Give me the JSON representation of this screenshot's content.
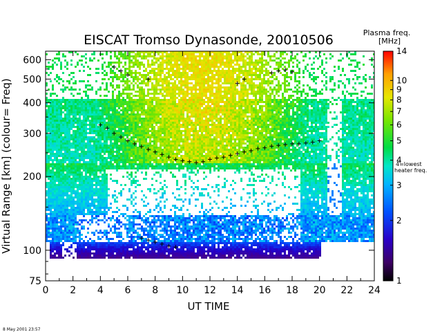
{
  "chart_data": {
    "type": "heatmap",
    "title": "EISCAT Tromso Dynasonde,  20010506",
    "xlabel": "UT TIME",
    "ylabel": "Virtual Range [km]    (colour= Freq)",
    "x_range": [
      0,
      24
    ],
    "x_ticks": [
      "0",
      "2",
      "4",
      "6",
      "8",
      "10",
      "12",
      "14",
      "16",
      "18",
      "20",
      "22",
      "24"
    ],
    "y_scale": "log",
    "y_range": [
      75,
      650
    ],
    "y_ticks": [
      "75",
      "100",
      "200",
      "300",
      "400",
      "500",
      "600"
    ],
    "colorbar": {
      "title_line1": "Plasma freq.",
      "title_line2": "[MHz]",
      "scale": "log",
      "range": [
        1,
        14
      ],
      "ticks": [
        "1",
        "2",
        "3",
        "4",
        "5",
        "6",
        "7",
        "8",
        "9",
        "10",
        "14"
      ],
      "annotation_line1": "4=lowest",
      "annotation_line2": "heater freq."
    },
    "f_layer_crosses": [
      [
        4.0,
        325
      ],
      [
        4.5,
        315
      ],
      [
        5.0,
        300
      ],
      [
        5.5,
        290
      ],
      [
        6.0,
        280
      ],
      [
        6.5,
        272
      ],
      [
        7.0,
        265
      ],
      [
        7.5,
        258
      ],
      [
        8.0,
        252
      ],
      [
        8.5,
        246
      ],
      [
        9.0,
        240
      ],
      [
        9.5,
        235
      ],
      [
        10.0,
        232
      ],
      [
        10.5,
        230
      ],
      [
        11.0,
        228
      ],
      [
        11.5,
        230
      ],
      [
        12.0,
        235
      ],
      [
        12.5,
        238
      ],
      [
        13.0,
        240
      ],
      [
        13.5,
        244
      ],
      [
        14.0,
        248
      ],
      [
        14.5,
        252
      ],
      [
        15.0,
        255
      ],
      [
        15.5,
        260
      ],
      [
        16.0,
        262
      ],
      [
        16.5,
        266
      ],
      [
        17.0,
        268
      ],
      [
        17.5,
        270
      ],
      [
        18.0,
        272
      ],
      [
        18.5,
        272
      ],
      [
        19.0,
        274
      ],
      [
        19.5,
        276
      ],
      [
        20.0,
        280
      ]
    ],
    "e_layer_crosses": [
      [
        7.0,
        112
      ],
      [
        7.5,
        110
      ],
      [
        8.0,
        108
      ],
      [
        8.5,
        106
      ],
      [
        9.0,
        104
      ],
      [
        9.5,
        103
      ]
    ],
    "top_crosses": [
      [
        5.0,
        560
      ],
      [
        5.5,
        540
      ],
      [
        6.0,
        520
      ],
      [
        7.5,
        500
      ],
      [
        14.0,
        480
      ],
      [
        14.5,
        500
      ],
      [
        16.5,
        530
      ],
      [
        17.0,
        540
      ],
      [
        17.5,
        545
      ],
      [
        18.0,
        535
      ]
    ]
  },
  "footer": {
    "timestamp": "8 May 2001 23:57"
  },
  "colors": {
    "colormap": [
      "#000000",
      "#4b0082",
      "#2200cc",
      "#0050ff",
      "#00b4ff",
      "#00e6c8",
      "#00dc46",
      "#78e600",
      "#e6e600",
      "#ffa000",
      "#ff0000"
    ]
  }
}
